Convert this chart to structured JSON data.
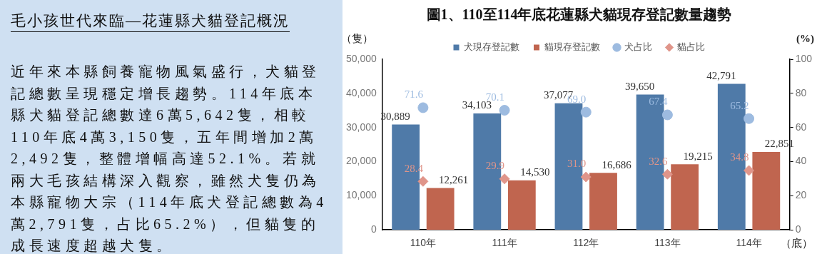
{
  "chart_data": [
    {
      "type": "other",
      "title": "毛小孩世代來臨—花蓮縣犬貓登記概況",
      "annotations": [
        "近年來本縣飼養寵物風氣盛行，犬貓登記總數呈現穩定增長趨勢。114年底本縣犬貓登記總數達6萬5,642隻，相較110年底4萬3,150隻，五年間增加2萬2,492隻，整體增幅高達52.1%。若就兩大毛孩結構深入觀察，雖然犬隻仍為本縣寵物大宗（114年底犬登記總數為4萬2,791隻，占比65.2%），但貓隻的成長速度超越犬隻。"
      ]
    },
    {
      "type": "bar",
      "title": "圖1、110至114年底花蓮縣犬貓現存登記數量趨勢",
      "ylabel": "（隻）",
      "y2label": "(%)",
      "xlabel": "（底）",
      "categories": [
        "110年",
        "111年",
        "112年",
        "113年",
        "114年"
      ],
      "series": [
        {
          "name": "犬現存登記數",
          "color": "#4f7aa8",
          "values": [
            30889,
            34103,
            37077,
            39650,
            42791
          ],
          "value_labels": [
            "30,889",
            "34,103",
            "37,077",
            "39,650",
            "42,791"
          ]
        },
        {
          "name": "貓現存登記數",
          "color": "#c0654f",
          "values": [
            12261,
            14530,
            16686,
            19215,
            22851
          ],
          "value_labels": [
            "12,261",
            "14,530",
            "16,686",
            "19,215",
            "22,851"
          ]
        },
        {
          "name": "犬占比",
          "type": "scatter",
          "axis": "y2",
          "marker": "circle",
          "color": "#9dbbe0",
          "x": [
            "110年",
            "111年",
            "112年",
            "113年",
            "114年"
          ],
          "values": [
            71.6,
            70.1,
            69.0,
            67.4,
            65.2
          ],
          "value_labels": [
            "71.6",
            "70.1",
            "69.0",
            "67.4",
            "65.2"
          ]
        },
        {
          "name": "貓占比",
          "type": "scatter",
          "axis": "y2",
          "marker": "diamond",
          "color": "#e0958a",
          "x": [
            "110年",
            "111年",
            "112年",
            "113年",
            "114年"
          ],
          "values": [
            28.4,
            29.9,
            31.0,
            32.6,
            34.8
          ],
          "value_labels": [
            "28.4",
            "29.9",
            "31.0",
            "32.6",
            "34.8"
          ]
        }
      ],
      "ylim": [
        0,
        50000
      ],
      "yticks": [
        {
          "value": 0,
          "label": "0"
        },
        {
          "value": 10000,
          "label": "10,000"
        },
        {
          "value": 20000,
          "label": "20,000"
        },
        {
          "value": 30000,
          "label": "30,000"
        },
        {
          "value": 40000,
          "label": "40,000"
        },
        {
          "value": 50000,
          "label": "50,000"
        }
      ],
      "y2lim": [
        0,
        100
      ],
      "y2ticks": [
        0,
        20,
        40,
        60,
        80,
        100
      ],
      "legend": "top",
      "grid": false
    }
  ]
}
